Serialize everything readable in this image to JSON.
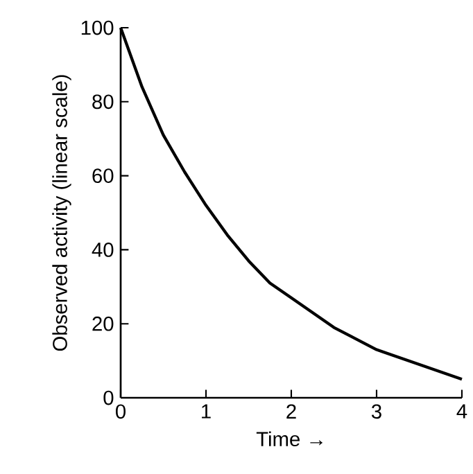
{
  "chart_data": {
    "type": "line",
    "xlabel": "Time →",
    "ylabel": "Observed activity (linear scale)",
    "x": [
      0,
      0.25,
      0.5,
      0.75,
      1,
      1.25,
      1.5,
      1.75,
      2,
      2.5,
      3,
      3.5,
      4
    ],
    "series": [
      {
        "color": "#000000",
        "values": [
          100,
          84,
          71,
          61,
          52,
          44,
          37,
          31,
          27,
          19,
          13,
          9,
          5
        ]
      }
    ],
    "xlim": [
      0,
      4
    ],
    "xticks": [
      0,
      1,
      2,
      3,
      4
    ],
    "ylim": [
      0,
      100
    ],
    "yticks": [
      0,
      20,
      40,
      60,
      80,
      100
    ],
    "grid": false,
    "marker": "none",
    "line_style": "solid"
  }
}
